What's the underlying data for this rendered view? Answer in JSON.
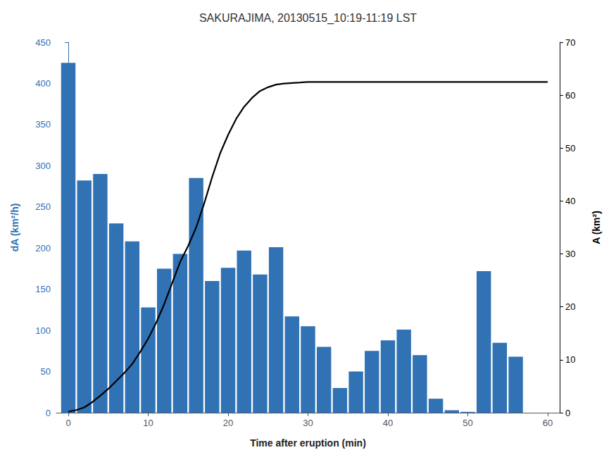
{
  "chart_data": {
    "type": "bar",
    "title": "SAKURAJIMA, 20130515_10:19-11:19 LST",
    "xlabel": "Time after eruption (min)",
    "ylabel": "dA (km²/h)",
    "y2label": "A (km²)",
    "xlim": [
      -1.5,
      61.5
    ],
    "xticks": [
      0,
      10,
      20,
      30,
      40,
      50,
      60
    ],
    "ylim": [
      0,
      450
    ],
    "yticks": [
      0,
      50,
      100,
      150,
      200,
      250,
      300,
      350,
      400,
      450
    ],
    "y2lim": [
      0,
      70
    ],
    "y2ticks": [
      0,
      10,
      20,
      30,
      40,
      50,
      60,
      70
    ],
    "grid": false,
    "series": [
      {
        "type": "bar",
        "color": "#3072b4",
        "x": [
          0,
          2,
          4,
          6,
          8,
          10,
          12,
          14,
          16,
          18,
          20,
          22,
          24,
          26,
          28,
          30,
          32,
          34,
          36,
          38,
          40,
          42,
          44,
          46,
          48,
          50,
          52,
          54,
          56,
          58
        ],
        "values": [
          425,
          282,
          290,
          230,
          208,
          128,
          175,
          193,
          285,
          160,
          176,
          197,
          168,
          201,
          117,
          105,
          80,
          30,
          50,
          75,
          88,
          101,
          70,
          17,
          3,
          1,
          172,
          85,
          68,
          0
        ]
      },
      {
        "type": "line",
        "color": "#000000",
        "axis": "y2",
        "x": [
          0,
          1,
          2,
          3,
          4,
          5,
          6,
          7,
          8,
          9,
          10,
          11,
          12,
          13,
          14,
          15,
          16,
          17,
          18,
          19,
          20,
          21,
          22,
          23,
          24,
          25,
          26,
          27,
          28,
          29,
          30,
          31,
          32,
          33,
          34,
          35,
          36,
          37,
          38,
          39,
          40,
          41,
          42,
          43,
          44,
          45,
          46,
          47,
          48,
          49,
          50,
          51,
          52,
          53,
          54,
          55,
          56,
          57,
          58,
          59,
          60
        ],
        "values": [
          0.2,
          0.5,
          1.0,
          2.0,
          3.2,
          4.5,
          6.0,
          7.5,
          9.2,
          11.5,
          14.0,
          17.0,
          20.5,
          24.5,
          28.5,
          31.5,
          35.0,
          39.5,
          44.5,
          49.0,
          52.5,
          55.5,
          57.8,
          59.5,
          60.8,
          61.5,
          62.0,
          62.2,
          62.3,
          62.4,
          62.5,
          62.5,
          62.5,
          62.5,
          62.5,
          62.5,
          62.5,
          62.5,
          62.5,
          62.5,
          62.5,
          62.5,
          62.5,
          62.5,
          62.5,
          62.5,
          62.5,
          62.5,
          62.5,
          62.5,
          62.5,
          62.5,
          62.5,
          62.5,
          62.5,
          62.5,
          62.5,
          62.5,
          62.5,
          62.5,
          62.5
        ]
      }
    ]
  }
}
